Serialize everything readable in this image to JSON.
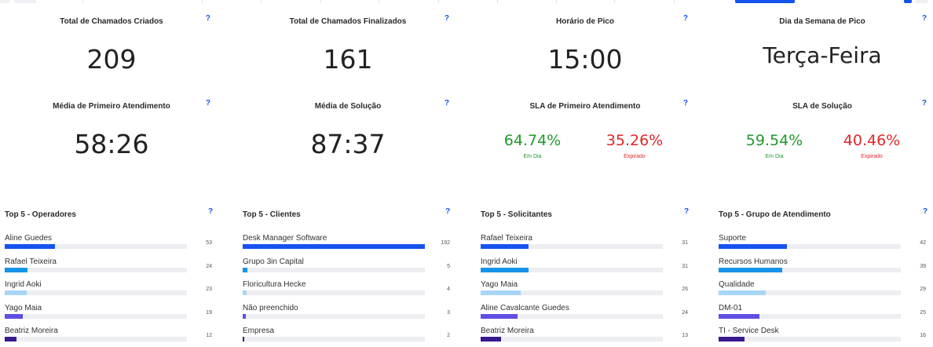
{
  "colors": {
    "accent": "#1553ef",
    "positive": "#1f9a2c",
    "negative": "#e0262b",
    "bar_palette": [
      "#1553ef",
      "#1594ea",
      "#a8d6f7",
      "#5f4fe2",
      "#38198e"
    ]
  },
  "help_label": "?",
  "kpis": [
    {
      "title": "Total de Chamados Criados",
      "value": "209"
    },
    {
      "title": "Total de Chamados Finalizados",
      "value": "161"
    },
    {
      "title": "Horário de Pico",
      "value": "15:00"
    },
    {
      "title": "Dia da Semana de Pico",
      "value": "Terça-Feira"
    },
    {
      "title": "Média de Primeiro Atendimento",
      "value": "58:26"
    },
    {
      "title": "Média de Solução",
      "value": "87:37"
    }
  ],
  "sla": [
    {
      "title": "SLA de Primeiro Atendimento",
      "on_time": "64.74%",
      "on_time_label": "Em Dia",
      "expired": "35.26%",
      "expired_label": "Expirado"
    },
    {
      "title": "SLA de Solução",
      "on_time": "59.54%",
      "on_time_label": "Em Dia",
      "expired": "40.46%",
      "expired_label": "Expirado"
    }
  ],
  "top5": [
    {
      "title": "Top 5 - Operadores",
      "max": 192,
      "items": [
        {
          "name": "Aline Guedes",
          "value": 53
        },
        {
          "name": "Rafael Teixeira",
          "value": 24
        },
        {
          "name": "Ingrid Aoki",
          "value": 23
        },
        {
          "name": "Yago Maia",
          "value": 19
        },
        {
          "name": "Beatriz Moreira",
          "value": 12
        }
      ]
    },
    {
      "title": "Top 5 - Clientes",
      "max": 192,
      "items": [
        {
          "name": "Desk Manager Software",
          "value": 192
        },
        {
          "name": "Grupo 3in Capital",
          "value": 5
        },
        {
          "name": "Floricultura Hecke",
          "value": 4
        },
        {
          "name": "Não preenchido",
          "value": 3
        },
        {
          "name": "Empresa",
          "value": 2
        }
      ]
    },
    {
      "title": "Top 5 - Solicitantes",
      "max": 118,
      "items": [
        {
          "name": "Rafael Teixeira",
          "value": 31
        },
        {
          "name": "Ingrid Aoki",
          "value": 31
        },
        {
          "name": "Yago Maia",
          "value": 26
        },
        {
          "name": "Aline Cavalcante Guedes",
          "value": 24
        },
        {
          "name": "Beatriz Moreira",
          "value": 13
        }
      ]
    },
    {
      "title": "Top 5 - Grupo de Atendimento",
      "max": 112,
      "items": [
        {
          "name": "Suporte",
          "value": 42
        },
        {
          "name": "Recursos Humanos",
          "value": 39
        },
        {
          "name": "Qualidade",
          "value": 29
        },
        {
          "name": "DM-01",
          "value": 25
        },
        {
          "name": "TI - Service Desk",
          "value": 16
        }
      ]
    }
  ]
}
